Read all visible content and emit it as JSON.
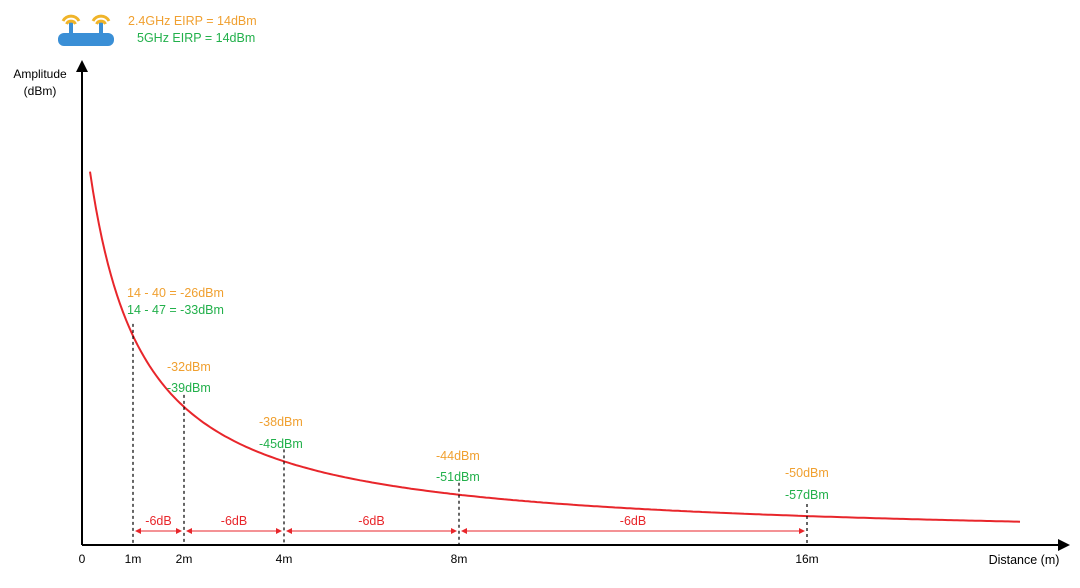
{
  "legend": {
    "line_24": "2.4GHz EIRP = 14dBm",
    "line_5": "5GHz EIRP = 14dBm"
  },
  "axes": {
    "y_label_line1": "Amplitude",
    "y_label_line2": "(dBm)",
    "x_label": "Distance (m)",
    "origin_label": "0"
  },
  "colors": {
    "ghz24": "#f0a030",
    "ghz5": "#22b04b",
    "curve": "#e8262b",
    "router": "#3a8fd6",
    "axis": "#000000"
  },
  "icons": {
    "router": "wifi-router-icon"
  },
  "chart_data": {
    "type": "line",
    "series": [
      {
        "name": "2.4GHz",
        "x": [
          1,
          2,
          4,
          8,
          16
        ],
        "values": [
          -26,
          -32,
          -38,
          -44,
          -50
        ]
      },
      {
        "name": "5GHz",
        "x": [
          1,
          2,
          4,
          8,
          16
        ],
        "values": [
          -33,
          -39,
          -45,
          -51,
          -57
        ]
      }
    ],
    "x_ticks": [
      "1m",
      "2m",
      "4m",
      "8m",
      "16m"
    ],
    "points": [
      {
        "x_label": "1m",
        "v24": "14 - 40 = -26dBm",
        "v5": "14 - 47 = -33dBm"
      },
      {
        "x_label": "2m",
        "v24": "-32dBm",
        "v5": "-39dBm"
      },
      {
        "x_label": "4m",
        "v24": "-38dBm",
        "v5": "-45dBm"
      },
      {
        "x_label": "8m",
        "v24": "-44dBm",
        "v5": "-51dBm"
      },
      {
        "x_label": "16m",
        "v24": "-50dBm",
        "v5": "-57dBm"
      }
    ],
    "intervals": [
      "-6dB",
      "-6dB",
      "-6dB",
      "-6dB"
    ],
    "xlabel": "Distance (m)",
    "ylabel": "Amplitude (dBm)"
  }
}
